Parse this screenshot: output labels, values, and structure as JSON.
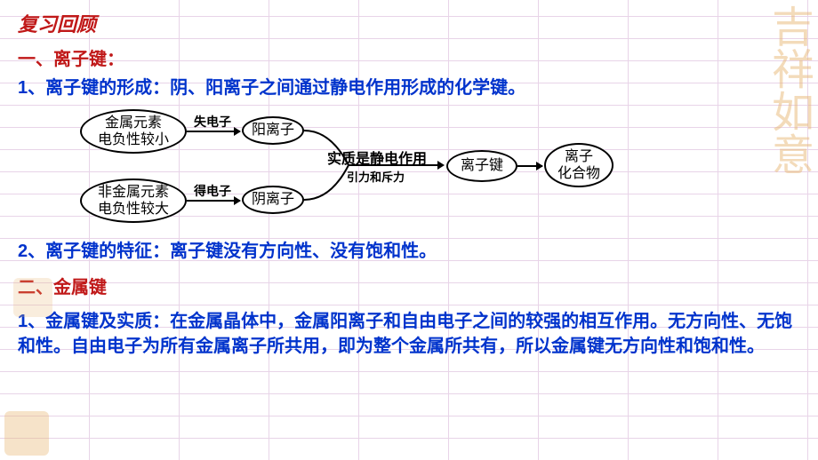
{
  "colors": {
    "title": "#c01818",
    "section": "#c01818",
    "content": "#0033cc",
    "diagram": "#000000",
    "decoration": "#e8b878"
  },
  "title": "复习回顾",
  "section1": {
    "header": "一、离子键：",
    "line1_prefix": "1、",
    "line1_label": "离子键的形成：",
    "line1_text": "阴、阳离子之间通过静电作用形成的化学键。",
    "line2_prefix": "2、",
    "line2_label": "离子键的特征：",
    "line2_text": "离子键没有方向性、没有饱和性。"
  },
  "diagram": {
    "nodes": {
      "metal": "金属元素\n电负性较小",
      "nonmetal": "非金属元素\n电负性较大",
      "cation": "阳离子",
      "anion": "阴离子",
      "ionic_bond": "离子键",
      "ionic_compound": "离子\n化合物"
    },
    "edges": {
      "lose_e": "失电子",
      "gain_e": "得电子",
      "essence": "实质是静电作用",
      "force": "引力和斥力"
    }
  },
  "section2": {
    "header": "二、金属键",
    "line1_prefix": "1、",
    "line1_label": "金属键及实质：",
    "line1_text": "在金属晶体中，金属阳离子和自由电子之间的较强的相互作用。无方向性、无饱和性。自由电子为所有金属离子所共用，即为整个金属所共有，所以金属键无方向性和饱和性。"
  }
}
